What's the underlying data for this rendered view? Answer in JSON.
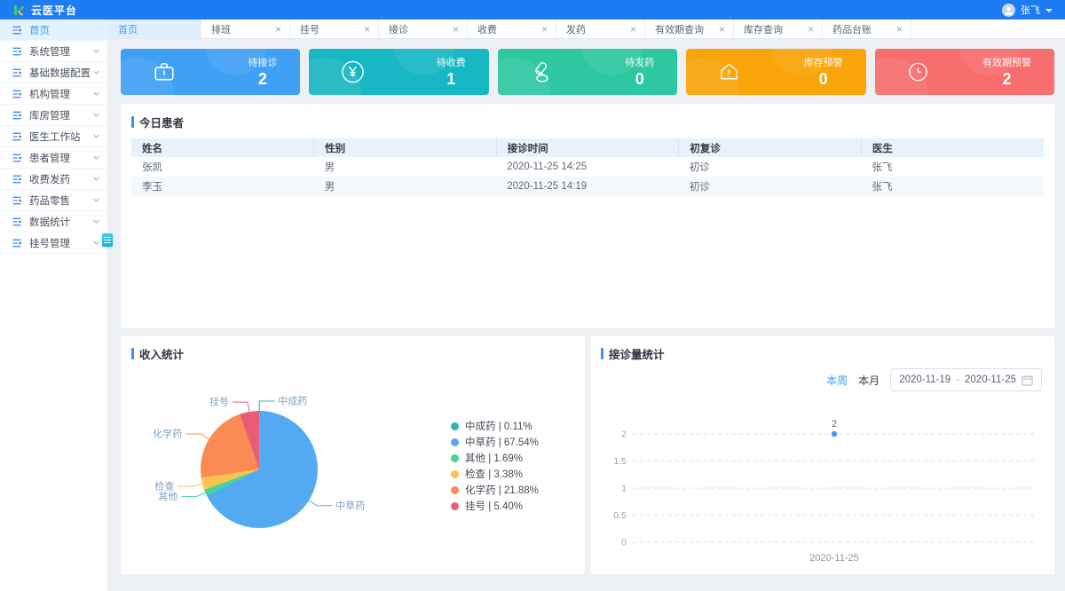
{
  "header": {
    "logo_text": "云医平台",
    "user_name": "张飞"
  },
  "sidebar": {
    "items": [
      {
        "label": "首页",
        "active": true,
        "has_children": false
      },
      {
        "label": "系统管理",
        "active": false,
        "has_children": true
      },
      {
        "label": "基础数据配置",
        "active": false,
        "has_children": true
      },
      {
        "label": "机构管理",
        "active": false,
        "has_children": true
      },
      {
        "label": "库房管理",
        "active": false,
        "has_children": true
      },
      {
        "label": "医生工作站",
        "active": false,
        "has_children": true
      },
      {
        "label": "患者管理",
        "active": false,
        "has_children": true
      },
      {
        "label": "收费发药",
        "active": false,
        "has_children": true
      },
      {
        "label": "药品零售",
        "active": false,
        "has_children": true
      },
      {
        "label": "数据统计",
        "active": false,
        "has_children": true
      },
      {
        "label": "挂号管理",
        "active": false,
        "has_children": true
      }
    ]
  },
  "tabs": [
    {
      "label": "首页",
      "active": true,
      "closable": false
    },
    {
      "label": "排班",
      "active": false,
      "closable": true
    },
    {
      "label": "挂号",
      "active": false,
      "closable": true
    },
    {
      "label": "接诊",
      "active": false,
      "closable": true
    },
    {
      "label": "收费",
      "active": false,
      "closable": true
    },
    {
      "label": "发药",
      "active": false,
      "closable": true
    },
    {
      "label": "有效期查询",
      "active": false,
      "closable": true
    },
    {
      "label": "库存查询",
      "active": false,
      "closable": true
    },
    {
      "label": "药品台账",
      "active": false,
      "closable": true
    }
  ],
  "stat_cards": [
    {
      "key": "pending-consult",
      "label": "待接诊",
      "value": "2",
      "color": "#3FA0F4",
      "icon": "medkit-icon"
    },
    {
      "key": "pending-charge",
      "label": "待收费",
      "value": "1",
      "color": "#17B7C3",
      "icon": "yen-icon"
    },
    {
      "key": "pending-dispense",
      "label": "待发药",
      "value": "0",
      "color": "#2DC7A2",
      "icon": "pills-icon"
    },
    {
      "key": "stock-warning",
      "label": "库存预警",
      "value": "0",
      "color": "#F9A408",
      "icon": "warehouse-alert-icon"
    },
    {
      "key": "expiry-warning",
      "label": "有效期预警",
      "value": "2",
      "color": "#F86D6D",
      "icon": "clock-icon"
    }
  ],
  "patients_panel": {
    "title": "今日患者",
    "columns": [
      "姓名",
      "性别",
      "接诊时间",
      "初复诊",
      "医生"
    ],
    "rows": [
      [
        "张凯",
        "男",
        "2020-11-25 14:25",
        "初诊",
        "张飞"
      ],
      [
        "李玉",
        "男",
        "2020-11-25 14:19",
        "初诊",
        "张飞"
      ]
    ]
  },
  "visits_panel": {
    "week_label": "本周",
    "month_label": "本月",
    "date_start": "2020-11-19",
    "date_separator": "-",
    "date_end": "2020-11-25"
  },
  "chart_data": [
    {
      "type": "pie",
      "title": "收入统计",
      "legend_position": "right",
      "series": [
        {
          "name": "中成药",
          "value": 0.11,
          "color": "#2BB5B2"
        },
        {
          "name": "中草药",
          "value": 67.54,
          "color": "#54A9F3"
        },
        {
          "name": "其他",
          "value": 1.69,
          "color": "#40D693"
        },
        {
          "name": "检查",
          "value": 3.38,
          "color": "#FBC34D"
        },
        {
          "name": "化学药",
          "value": 21.88,
          "color": "#FB8A55"
        },
        {
          "name": "挂号",
          "value": 5.4,
          "color": "#EA5B76"
        }
      ]
    },
    {
      "type": "line",
      "title": "接诊量统计",
      "x": [
        "2020-11-25"
      ],
      "series": [
        {
          "name": "接诊量",
          "values": [
            2
          ],
          "color": "#3E9EF7"
        }
      ],
      "ylim": [
        0,
        2
      ],
      "yticks": [
        0,
        0.5,
        1,
        1.5,
        2
      ],
      "grid": "dashed",
      "point_labels": [
        "2"
      ]
    }
  ]
}
